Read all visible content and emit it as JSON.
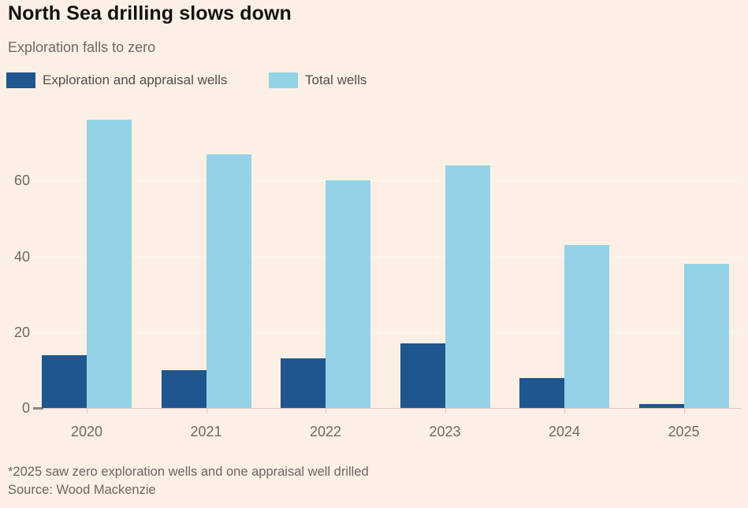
{
  "title": "North Sea drilling slows down",
  "subtitle": "Exploration falls to zero",
  "legend": {
    "items": [
      {
        "label": "Exploration and appraisal wells",
        "color": "#20568e"
      },
      {
        "label": "Total wells",
        "color": "#94d2e8"
      }
    ]
  },
  "footnote": "*2025 saw zero exploration wells and one appraisal well drilled",
  "source": "Source: Wood Mackenzie",
  "colors": {
    "background": "#fcf0e5",
    "title_text": "#141211",
    "muted_text": "#6f6863",
    "legend_text": "#534e4a",
    "gridline": "#fdf7f0",
    "baseline": "#d9c9bc",
    "series_dark": "#20568e",
    "series_light": "#94d2e8"
  },
  "chart_data": {
    "type": "bar",
    "title": "North Sea drilling slows down",
    "subtitle": "Exploration falls to zero",
    "categories": [
      "2020",
      "2021",
      "2022",
      "2023",
      "2024",
      "2025"
    ],
    "series": [
      {
        "name": "Exploration and appraisal wells",
        "color": "#20568e",
        "values": [
          14,
          10,
          13,
          17,
          8,
          1
        ]
      },
      {
        "name": "Total wells",
        "color": "#94d2e8",
        "values": [
          76,
          67,
          60,
          64,
          43,
          38
        ]
      }
    ],
    "xlabel": "",
    "ylabel": "",
    "yticks": [
      0,
      20,
      40,
      60
    ],
    "ylim": [
      0,
      80
    ],
    "grid": "horizontal",
    "legend_position": "top",
    "annotation": "*2025 saw zero exploration wells and one appraisal well drilled"
  }
}
